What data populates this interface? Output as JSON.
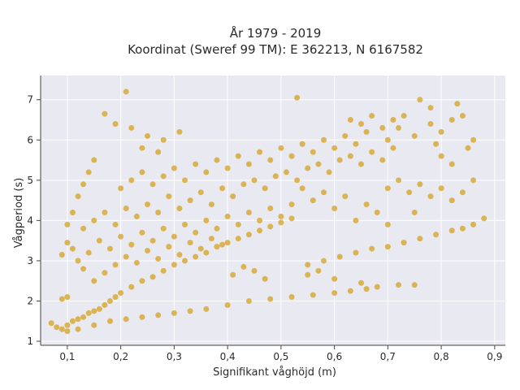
{
  "chart_data": {
    "type": "scatter",
    "title": "År 1979 - 2019",
    "subtitle": "Koordinat (Sweref 99 TM): E 362213, N 6167582",
    "xlabel": "Signifikant våghöjd (m)",
    "ylabel": "Vågperiod (s)",
    "xlim": [
      0.05,
      0.92
    ],
    "ylim": [
      0.9,
      7.6
    ],
    "x_ticks": [
      0.1,
      0.2,
      0.3,
      0.4,
      0.5,
      0.6,
      0.7,
      0.8,
      0.9
    ],
    "x_tick_labels": [
      "0,1",
      "0,2",
      "0,3",
      "0,4",
      "0,5",
      "0,6",
      "0,7",
      "0,8",
      "0,9"
    ],
    "y_ticks": [
      1,
      2,
      3,
      4,
      5,
      6,
      7
    ],
    "y_tick_labels": [
      "1",
      "2",
      "3",
      "4",
      "5",
      "6",
      "7"
    ],
    "grid": true,
    "legend": "none",
    "marker_color": "#d4a21f",
    "background_color": "#e9e9f1",
    "points": [
      [
        0.07,
        1.45
      ],
      [
        0.08,
        1.35
      ],
      [
        0.09,
        1.3
      ],
      [
        0.1,
        1.4
      ],
      [
        0.11,
        1.5
      ],
      [
        0.12,
        1.55
      ],
      [
        0.13,
        1.6
      ],
      [
        0.14,
        1.7
      ],
      [
        0.15,
        1.75
      ],
      [
        0.16,
        1.8
      ],
      [
        0.17,
        1.9
      ],
      [
        0.18,
        2.0
      ],
      [
        0.19,
        2.1
      ],
      [
        0.2,
        2.2
      ],
      [
        0.22,
        2.35
      ],
      [
        0.24,
        2.5
      ],
      [
        0.26,
        2.6
      ],
      [
        0.28,
        2.75
      ],
      [
        0.3,
        2.9
      ],
      [
        0.32,
        3.0
      ],
      [
        0.34,
        3.1
      ],
      [
        0.36,
        3.2
      ],
      [
        0.38,
        3.35
      ],
      [
        0.4,
        3.45
      ],
      [
        0.42,
        3.55
      ],
      [
        0.44,
        3.65
      ],
      [
        0.46,
        3.75
      ],
      [
        0.48,
        3.85
      ],
      [
        0.5,
        3.95
      ],
      [
        0.52,
        4.05
      ],
      [
        0.1,
        1.25
      ],
      [
        0.12,
        1.3
      ],
      [
        0.15,
        1.4
      ],
      [
        0.18,
        1.5
      ],
      [
        0.21,
        1.55
      ],
      [
        0.24,
        1.6
      ],
      [
        0.27,
        1.65
      ],
      [
        0.3,
        1.7
      ],
      [
        0.33,
        1.75
      ],
      [
        0.36,
        1.8
      ],
      [
        0.4,
        1.9
      ],
      [
        0.44,
        2.0
      ],
      [
        0.48,
        2.05
      ],
      [
        0.52,
        2.1
      ],
      [
        0.56,
        2.15
      ],
      [
        0.6,
        2.2
      ],
      [
        0.63,
        2.25
      ],
      [
        0.66,
        2.3
      ],
      [
        0.68,
        2.35
      ],
      [
        0.55,
        2.9
      ],
      [
        0.58,
        3.0
      ],
      [
        0.61,
        3.1
      ],
      [
        0.64,
        3.2
      ],
      [
        0.67,
        3.3
      ],
      [
        0.7,
        3.35
      ],
      [
        0.73,
        3.45
      ],
      [
        0.76,
        3.55
      ],
      [
        0.79,
        3.65
      ],
      [
        0.82,
        3.75
      ],
      [
        0.84,
        3.8
      ],
      [
        0.86,
        3.9
      ],
      [
        0.88,
        4.05
      ],
      [
        0.13,
        3.8
      ],
      [
        0.15,
        4.0
      ],
      [
        0.17,
        4.2
      ],
      [
        0.19,
        3.9
      ],
      [
        0.21,
        4.3
      ],
      [
        0.23,
        4.1
      ],
      [
        0.25,
        4.4
      ],
      [
        0.27,
        4.2
      ],
      [
        0.29,
        4.6
      ],
      [
        0.31,
        4.3
      ],
      [
        0.33,
        4.5
      ],
      [
        0.35,
        4.7
      ],
      [
        0.37,
        4.4
      ],
      [
        0.39,
        4.8
      ],
      [
        0.41,
        4.6
      ],
      [
        0.43,
        4.9
      ],
      [
        0.45,
        5.0
      ],
      [
        0.47,
        4.8
      ],
      [
        0.49,
        5.1
      ],
      [
        0.51,
        5.2
      ],
      [
        0.53,
        5.0
      ],
      [
        0.55,
        5.3
      ],
      [
        0.57,
        5.4
      ],
      [
        0.59,
        5.2
      ],
      [
        0.61,
        5.5
      ],
      [
        0.63,
        5.6
      ],
      [
        0.65,
        5.4
      ],
      [
        0.67,
        5.7
      ],
      [
        0.69,
        5.5
      ],
      [
        0.71,
        5.8
      ],
      [
        0.14,
        3.2
      ],
      [
        0.16,
        3.5
      ],
      [
        0.18,
        3.3
      ],
      [
        0.2,
        3.6
      ],
      [
        0.22,
        3.4
      ],
      [
        0.24,
        3.7
      ],
      [
        0.26,
        3.5
      ],
      [
        0.28,
        3.8
      ],
      [
        0.3,
        3.6
      ],
      [
        0.32,
        3.9
      ],
      [
        0.34,
        3.7
      ],
      [
        0.36,
        4.0
      ],
      [
        0.38,
        3.8
      ],
      [
        0.4,
        4.1
      ],
      [
        0.42,
        3.9
      ],
      [
        0.44,
        4.2
      ],
      [
        0.46,
        4.0
      ],
      [
        0.48,
        4.3
      ],
      [
        0.5,
        4.1
      ],
      [
        0.52,
        4.4
      ],
      [
        0.2,
        4.8
      ],
      [
        0.22,
        5.0
      ],
      [
        0.24,
        5.2
      ],
      [
        0.26,
        4.9
      ],
      [
        0.28,
        5.1
      ],
      [
        0.3,
        5.3
      ],
      [
        0.32,
        5.0
      ],
      [
        0.34,
        5.4
      ],
      [
        0.36,
        5.2
      ],
      [
        0.38,
        5.5
      ],
      [
        0.4,
        5.3
      ],
      [
        0.42,
        5.6
      ],
      [
        0.44,
        5.4
      ],
      [
        0.46,
        5.7
      ],
      [
        0.48,
        5.5
      ],
      [
        0.5,
        5.8
      ],
      [
        0.52,
        5.6
      ],
      [
        0.54,
        5.9
      ],
      [
        0.56,
        5.7
      ],
      [
        0.58,
        6.0
      ],
      [
        0.6,
        5.8
      ],
      [
        0.62,
        6.1
      ],
      [
        0.64,
        5.9
      ],
      [
        0.66,
        6.2
      ],
      [
        0.7,
        6.0
      ],
      [
        0.72,
        6.3
      ],
      [
        0.75,
        6.1
      ],
      [
        0.78,
        6.4
      ],
      [
        0.8,
        6.2
      ],
      [
        0.82,
        6.5
      ],
      [
        0.84,
        6.6
      ],
      [
        0.83,
        6.9
      ],
      [
        0.78,
        6.8
      ],
      [
        0.76,
        7.0
      ],
      [
        0.53,
        7.05
      ],
      [
        0.21,
        7.2
      ],
      [
        0.17,
        6.65
      ],
      [
        0.19,
        6.4
      ],
      [
        0.22,
        6.3
      ],
      [
        0.25,
        6.1
      ],
      [
        0.28,
        6.0
      ],
      [
        0.31,
        6.2
      ],
      [
        0.24,
        5.8
      ],
      [
        0.27,
        5.7
      ],
      [
        0.15,
        5.5
      ],
      [
        0.14,
        5.2
      ],
      [
        0.13,
        4.9
      ],
      [
        0.12,
        4.6
      ],
      [
        0.11,
        4.2
      ],
      [
        0.1,
        3.9
      ],
      [
        0.09,
        3.15
      ],
      [
        0.1,
        3.45
      ],
      [
        0.11,
        3.3
      ],
      [
        0.12,
        3.0
      ],
      [
        0.13,
        2.8
      ],
      [
        0.1,
        2.1
      ],
      [
        0.09,
        2.05
      ],
      [
        0.15,
        2.5
      ],
      [
        0.17,
        2.7
      ],
      [
        0.19,
        2.9
      ],
      [
        0.21,
        3.1
      ],
      [
        0.23,
        2.95
      ],
      [
        0.25,
        3.25
      ],
      [
        0.27,
        3.05
      ],
      [
        0.29,
        3.35
      ],
      [
        0.31,
        3.15
      ],
      [
        0.33,
        3.45
      ],
      [
        0.35,
        3.3
      ],
      [
        0.37,
        3.55
      ],
      [
        0.39,
        3.4
      ],
      [
        0.7,
        4.8
      ],
      [
        0.72,
        5.0
      ],
      [
        0.74,
        4.7
      ],
      [
        0.76,
        4.9
      ],
      [
        0.78,
        4.6
      ],
      [
        0.8,
        4.8
      ],
      [
        0.82,
        4.5
      ],
      [
        0.84,
        4.7
      ],
      [
        0.86,
        5.0
      ],
      [
        0.75,
        4.2
      ],
      [
        0.7,
        3.9
      ],
      [
        0.68,
        4.2
      ],
      [
        0.66,
        4.4
      ],
      [
        0.64,
        4.0
      ],
      [
        0.62,
        4.6
      ],
      [
        0.6,
        4.3
      ],
      [
        0.58,
        4.7
      ],
      [
        0.56,
        4.5
      ],
      [
        0.54,
        4.8
      ],
      [
        0.75,
        2.4
      ],
      [
        0.72,
        2.4
      ],
      [
        0.6,
        2.55
      ],
      [
        0.65,
        2.45
      ],
      [
        0.45,
        2.75
      ],
      [
        0.47,
        2.55
      ],
      [
        0.43,
        2.85
      ],
      [
        0.41,
        2.65
      ],
      [
        0.55,
        2.65
      ],
      [
        0.57,
        2.75
      ],
      [
        0.8,
        5.6
      ],
      [
        0.82,
        5.4
      ],
      [
        0.85,
        5.8
      ],
      [
        0.86,
        6.0
      ],
      [
        0.79,
        5.9
      ],
      [
        0.73,
        6.6
      ],
      [
        0.71,
        6.5
      ],
      [
        0.69,
        6.3
      ],
      [
        0.67,
        6.6
      ],
      [
        0.65,
        6.4
      ],
      [
        0.63,
        6.5
      ]
    ]
  }
}
